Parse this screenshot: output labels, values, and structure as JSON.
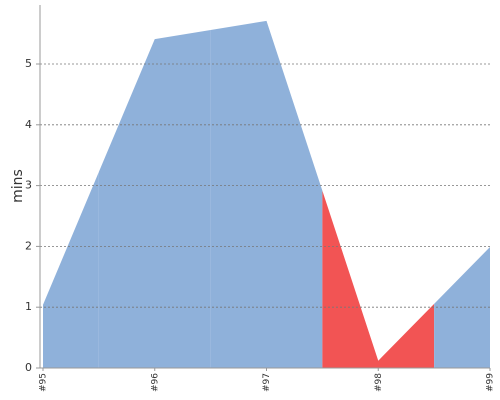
{
  "chart_data": {
    "type": "area",
    "y_label": "mins",
    "categories": [
      "#95",
      "#96",
      "#97",
      "#98",
      "#99"
    ],
    "values": [
      1.04,
      5.41,
      5.71,
      0.12,
      1.99
    ],
    "colors": [
      "#8fb1da",
      "#8fb1da",
      "#8fb1da",
      "#f25454",
      "#8fb1da"
    ],
    "ylim": [
      0,
      6
    ],
    "yticks": [
      0,
      1,
      2,
      3,
      4,
      5
    ],
    "grid": true
  }
}
